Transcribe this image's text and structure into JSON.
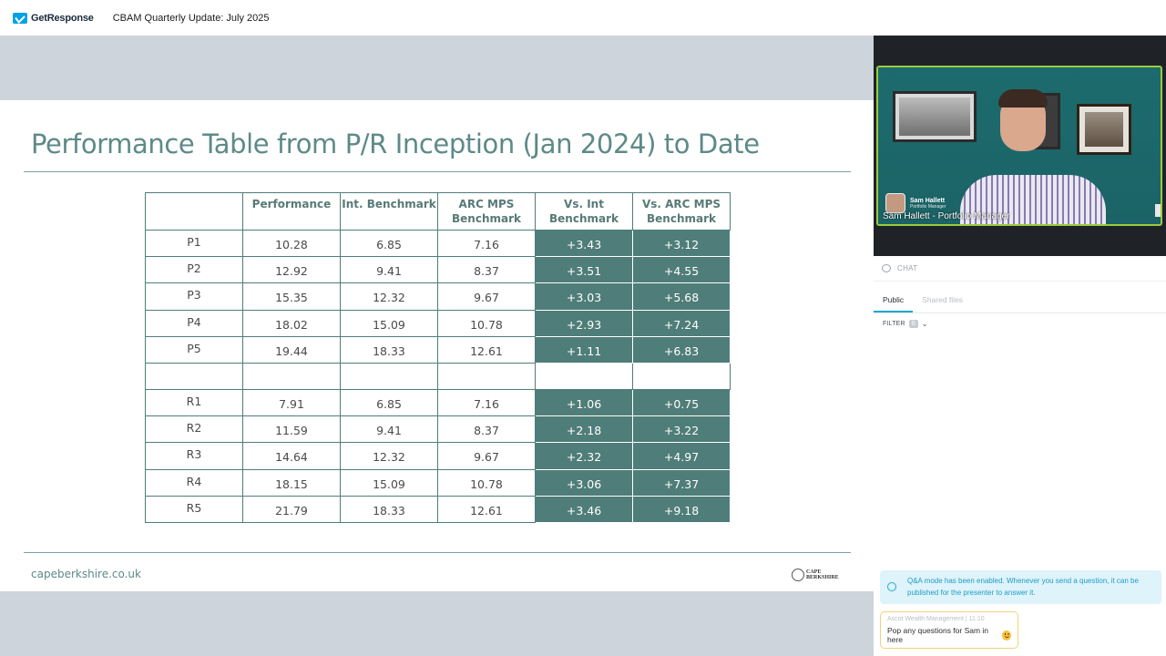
{
  "topbar": {
    "brand": "GetResponse",
    "webinar_title": "CBAM Quarterly Update: July 2025"
  },
  "slide": {
    "title": "Performance Table from P/R Inception (Jan 2024) to Date",
    "url": "capeberkshire.co.uk",
    "brand_stamp": "CAPE BERKSHIRE",
    "table": {
      "headers": [
        "",
        "Performance",
        "Int. Benchmark",
        "ARC MPS\nBenchmark",
        "Vs. Int\nBenchmark",
        "Vs. ARC MPS\nBenchmark"
      ],
      "rows": [
        [
          "P1",
          "10.28",
          "6.85",
          "7.16",
          "+3.43",
          "+3.12"
        ],
        [
          "P2",
          "12.92",
          "9.41",
          "8.37",
          "+3.51",
          "+4.55"
        ],
        [
          "P3",
          "15.35",
          "12.32",
          "9.67",
          "+3.03",
          "+5.68"
        ],
        [
          "P4",
          "18.02",
          "15.09",
          "10.78",
          "+2.93",
          "+7.24"
        ],
        [
          "P5",
          "19.44",
          "18.33",
          "12.61",
          "+1.11",
          "+6.83"
        ],
        [
          "",
          "",
          "",
          "",
          "",
          ""
        ],
        [
          "R1",
          "7.91",
          "6.85",
          "7.16",
          "+1.06",
          "+0.75"
        ],
        [
          "R2",
          "11.59",
          "9.41",
          "8.37",
          "+2.18",
          "+3.22"
        ],
        [
          "R3",
          "14.64",
          "12.32",
          "9.67",
          "+2.32",
          "+4.97"
        ],
        [
          "R4",
          "18.15",
          "15.09",
          "10.78",
          "+3.06",
          "+7.37"
        ],
        [
          "R5",
          "21.79",
          "18.33",
          "12.61",
          "+3.46",
          "+9.18"
        ]
      ]
    }
  },
  "video": {
    "lower_third_name": "Sam Hallett",
    "lower_third_role": "Portfolio Manager",
    "caption": "Sam Hallett - Portfolio Manager"
  },
  "chat": {
    "header": "CHAT",
    "tabs": [
      {
        "label": "Public",
        "active": true
      },
      {
        "label": "Shared files",
        "active": false
      }
    ],
    "filter_label": "FILTER",
    "filter_count": "0",
    "qa_notice": "Q&A mode has been enabled. Whenever you send a question, it can be published for the presenter to answer it.",
    "message": {
      "author": "Ascot Wealth Management",
      "time": "11:10",
      "text": "Pop any questions for Sam in here"
    }
  },
  "colors": {
    "accent_teal": "#4f7d79",
    "title_teal": "#5d8a87",
    "brand_blue": "#00a2e3",
    "qa_blue": "#1f9cc6",
    "speaker_border": "#9acc3a"
  }
}
